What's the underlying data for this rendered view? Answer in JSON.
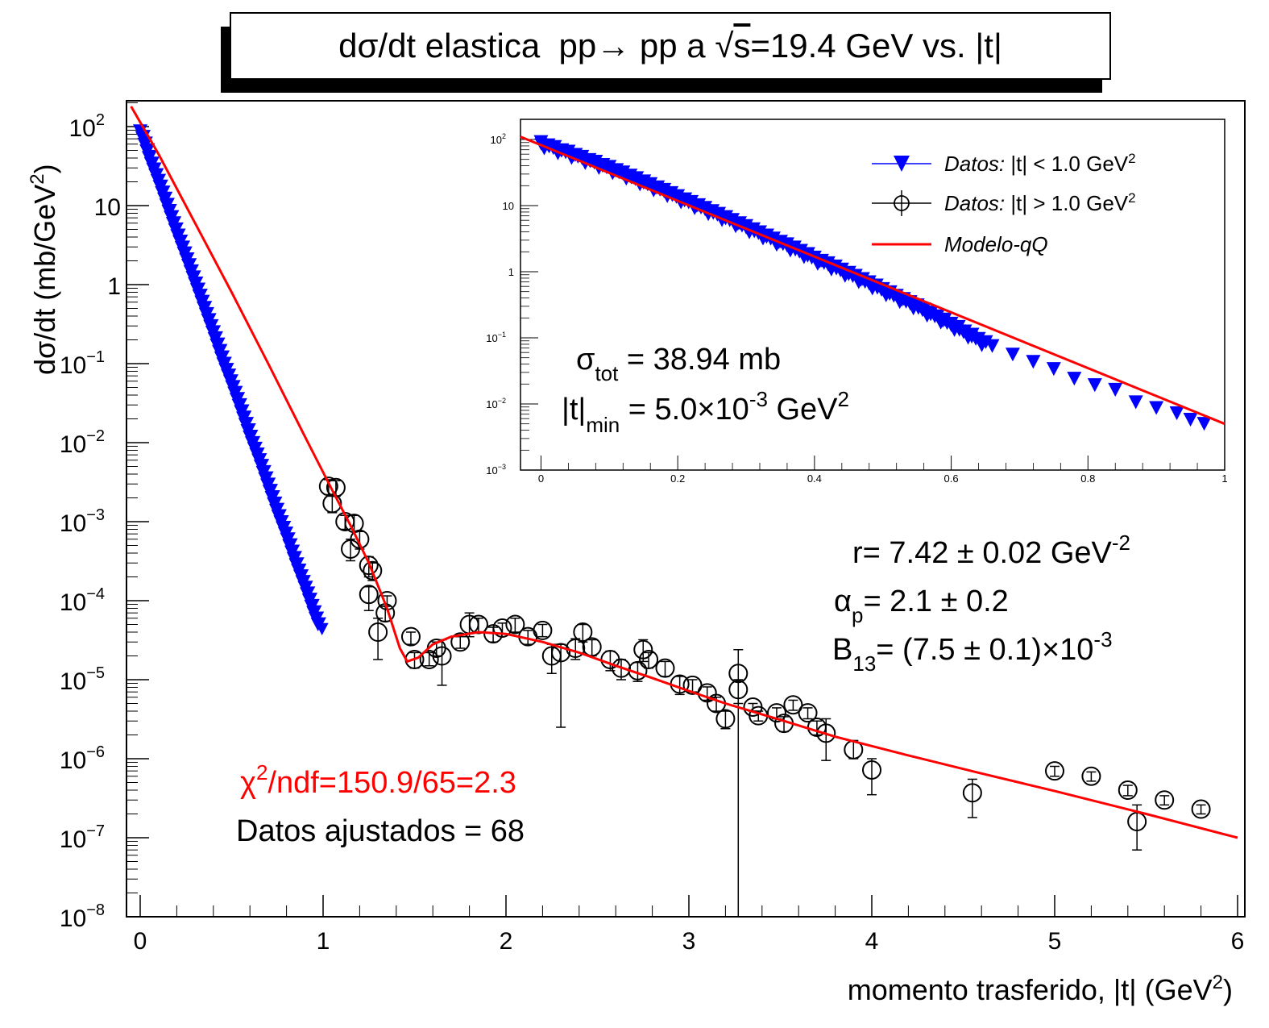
{
  "title": {
    "prefix": "dσ/dt elastica  pp→ pp a ",
    "sqrt": "√",
    "s": "s",
    "suffix": "=19.4 GeV vs. |t|"
  },
  "axes": {
    "ylabel_main": "dσ/dt (mb/GeV",
    "ylabel_exp": "2",
    "ylabel_close": ")",
    "xlabel_main": "momento trasferido, |t| (GeV",
    "xlabel_exp": "2",
    "xlabel_close": ")"
  },
  "annotations": {
    "chi2_sym": "χ",
    "chi2_exp": "2",
    "chi2_rest": "/ndf=150.9/65=2.3",
    "datos_ajustados": "Datos ajustados = 68",
    "r_text": "r= 7.42 ± 0.02 GeV",
    "r_exp": "-2",
    "alpha_sym": "α",
    "alpha_sub": "p",
    "alpha_rest": "= 2.1 ± 0.2",
    "b_sym": "B",
    "b_sub": "13",
    "b_rest": "= (7.5 ± 0.1)×10",
    "b_exp": "-3",
    "sigma_sym": "σ",
    "sigma_sub": "tot",
    "sigma_rest": " = 38.94 mb",
    "tmin_sym": "|t|",
    "tmin_sub": "min",
    "tmin_rest": " = 5.0×10",
    "tmin_exp": "-3",
    "tmin_unit": " GeV",
    "tmin_unit_exp": "2"
  },
  "legend": {
    "entries": [
      {
        "italic": "Datos:",
        "text": " |t| < 1.0 GeV",
        "exp": "2",
        "marker": "triangle-down",
        "color": "#0000ff"
      },
      {
        "italic": "Datos:",
        "text": " |t| > 1.0 GeV",
        "exp": "2",
        "marker": "open-circle",
        "color": "#000000"
      },
      {
        "italic": "Modelo-qQ",
        "text": "",
        "exp": "",
        "marker": "line",
        "color": "#ff0000"
      }
    ]
  },
  "colors": {
    "model": "#ff0000",
    "low_t": "#0000ff",
    "high_t": "#000000",
    "chi2_text": "#ff0000"
  },
  "chart_data": [
    {
      "type": "scatter",
      "xlim": [
        0,
        6
      ],
      "ylim": [
        1e-08,
        200
      ],
      "yscale": "log",
      "xticks": [
        "0",
        "1",
        "2",
        "3",
        "4",
        "5",
        "6"
      ],
      "yticks": [
        {
          "base": "10",
          "exp": "2"
        },
        {
          "base": "10",
          "exp": ""
        },
        {
          "base": "1",
          "exp": ""
        },
        {
          "base": "10",
          "exp": "−1"
        },
        {
          "base": "10",
          "exp": "−2"
        },
        {
          "base": "10",
          "exp": "−3"
        },
        {
          "base": "10",
          "exp": "−4"
        },
        {
          "base": "10",
          "exp": "−5"
        },
        {
          "base": "10",
          "exp": "−6"
        },
        {
          "base": "10",
          "exp": "−7"
        },
        {
          "base": "10",
          "exp": "−8"
        }
      ],
      "yticks_values": [
        100,
        10,
        1,
        0.1,
        0.01,
        0.001,
        0.0001,
        1e-05,
        1e-06,
        1e-07,
        1e-08
      ],
      "series": [
        {
          "marker": "open-circle",
          "points": [
            {
              "x": 1.03,
              "y": 0.0028,
              "lo": 0.0022,
              "hi": 0.0034
            },
            {
              "x": 1.07,
              "y": 0.0027,
              "lo": 0.0021,
              "hi": 0.0033
            },
            {
              "x": 1.05,
              "y": 0.0017,
              "lo": 0.0013,
              "hi": 0.0021
            },
            {
              "x": 1.12,
              "y": 0.001,
              "lo": 0.0008,
              "hi": 0.0012
            },
            {
              "x": 1.17,
              "y": 0.00095,
              "lo": 0.00075,
              "hi": 0.0012
            },
            {
              "x": 1.15,
              "y": 0.00045,
              "lo": 0.00032,
              "hi": 0.0006
            },
            {
              "x": 1.2,
              "y": 0.0006,
              "lo": 0.00045,
              "hi": 0.00075
            },
            {
              "x": 1.25,
              "y": 0.00028,
              "lo": 0.0002,
              "hi": 0.00036
            },
            {
              "x": 1.27,
              "y": 0.00024,
              "lo": 0.00018,
              "hi": 0.0003
            },
            {
              "x": 1.25,
              "y": 0.00012,
              "lo": 7.5e-05,
              "hi": 0.00015
            },
            {
              "x": 1.35,
              "y": 0.0001,
              "lo": 8.5e-05,
              "hi": 0.000115
            },
            {
              "x": 1.34,
              "y": 7e-05,
              "lo": 5.5e-05,
              "hi": 8.5e-05
            },
            {
              "x": 1.3,
              "y": 4e-05,
              "lo": 1.8e-05,
              "hi": 6e-05
            },
            {
              "x": 1.48,
              "y": 3.5e-05,
              "lo": 2.8e-05,
              "hi": 4e-05
            },
            {
              "x": 1.5,
              "y": 1.8e-05,
              "lo": 1.4e-05,
              "hi": 2.2e-05
            },
            {
              "x": 1.58,
              "y": 1.8e-05,
              "lo": 1.5e-05,
              "hi": 2.2e-05
            },
            {
              "x": 1.65,
              "y": 2e-05,
              "lo": 8.5e-06,
              "hi": 3.2e-05
            },
            {
              "x": 1.62,
              "y": 2.5e-05,
              "lo": 2e-05,
              "hi": 3e-05
            },
            {
              "x": 1.75,
              "y": 3e-05,
              "lo": 2.5e-05,
              "hi": 3.5e-05
            },
            {
              "x": 1.8,
              "y": 5e-05,
              "lo": 3.5e-05,
              "hi": 7e-05
            },
            {
              "x": 1.85,
              "y": 5e-05,
              "lo": 4e-05,
              "hi": 6e-05
            },
            {
              "x": 1.93,
              "y": 3.8e-05,
              "lo": 3e-05,
              "hi": 4.6e-05
            },
            {
              "x": 1.98,
              "y": 4.5e-05,
              "lo": 3.8e-05,
              "hi": 5.2e-05
            },
            {
              "x": 2.05,
              "y": 5e-05,
              "lo": 4e-05,
              "hi": 6e-05
            },
            {
              "x": 2.12,
              "y": 3.5e-05,
              "lo": 2.8e-05,
              "hi": 4.2e-05
            },
            {
              "x": 2.2,
              "y": 4.2e-05,
              "lo": 3.5e-05,
              "hi": 5e-05
            },
            {
              "x": 2.25,
              "y": 2e-05,
              "lo": 1.2e-05,
              "hi": 2.8e-05
            },
            {
              "x": 2.3,
              "y": 2.2e-05,
              "lo": 2.5e-06,
              "hi": 2.8e-05
            },
            {
              "x": 2.38,
              "y": 2.5e-05,
              "lo": 1.8e-05,
              "hi": 3.3e-05
            },
            {
              "x": 2.42,
              "y": 4e-05,
              "lo": 3e-05,
              "hi": 5e-05
            },
            {
              "x": 2.47,
              "y": 2.6e-05,
              "lo": 2e-05,
              "hi": 3.2e-05
            },
            {
              "x": 2.57,
              "y": 1.8e-05,
              "lo": 1.3e-05,
              "hi": 2.3e-05
            },
            {
              "x": 2.63,
              "y": 1.4e-05,
              "lo": 1e-05,
              "hi": 1.8e-05
            },
            {
              "x": 2.72,
              "y": 1.3e-05,
              "lo": 9.5e-06,
              "hi": 1.65e-05
            },
            {
              "x": 2.75,
              "y": 2.4e-05,
              "lo": 1.7e-05,
              "hi": 3.2e-05
            },
            {
              "x": 2.78,
              "y": 1.8e-05,
              "lo": 1.4e-05,
              "hi": 2.2e-05
            },
            {
              "x": 2.87,
              "y": 1.4e-05,
              "lo": 1.1e-05,
              "hi": 1.7e-05
            },
            {
              "x": 2.95,
              "y": 8.8e-06,
              "lo": 6.5e-06,
              "hi": 1.1e-05
            },
            {
              "x": 3.02,
              "y": 8.5e-06,
              "lo": 7e-06,
              "hi": 1e-05
            },
            {
              "x": 3.1,
              "y": 6.8e-06,
              "lo": 5.5e-06,
              "hi": 8.1e-06
            },
            {
              "x": 3.15,
              "y": 5e-06,
              "lo": 4e-06,
              "hi": 6e-06
            },
            {
              "x": 3.2,
              "y": 3.2e-06,
              "lo": 2.4e-06,
              "hi": 4e-06
            },
            {
              "x": 3.27,
              "y": 7.5e-06,
              "lo": 1e-08,
              "hi": 1e-05
            },
            {
              "x": 3.27,
              "y": 1.2e-05,
              "lo": 5e-06,
              "hi": 2.4e-05
            },
            {
              "x": 3.35,
              "y": 4.5e-06,
              "lo": 4e-06,
              "hi": 5e-06
            },
            {
              "x": 3.38,
              "y": 3.5e-06,
              "lo": 3e-06,
              "hi": 4e-06
            },
            {
              "x": 3.48,
              "y": 3.8e-06,
              "lo": 3.2e-06,
              "hi": 4.4e-06
            },
            {
              "x": 3.52,
              "y": 2.8e-06,
              "lo": 2.2e-06,
              "hi": 3.4e-06
            },
            {
              "x": 3.57,
              "y": 4.8e-06,
              "lo": 4.1e-06,
              "hi": 5.5e-06
            },
            {
              "x": 3.65,
              "y": 3.8e-06,
              "lo": 3.2e-06,
              "hi": 4.4e-06
            },
            {
              "x": 3.7,
              "y": 2.5e-06,
              "lo": 2e-06,
              "hi": 3e-06
            },
            {
              "x": 3.75,
              "y": 2.1e-06,
              "lo": 9.5e-07,
              "hi": 3.2e-06
            },
            {
              "x": 3.9,
              "y": 1.3e-06,
              "lo": 1e-06,
              "hi": 1.7e-06
            },
            {
              "x": 4.0,
              "y": 7.2e-07,
              "lo": 3.5e-07,
              "hi": 1e-06
            },
            {
              "x": 4.55,
              "y": 3.7e-07,
              "lo": 1.8e-07,
              "hi": 5.5e-07
            },
            {
              "x": 5.0,
              "y": 7e-07,
              "lo": 6e-07,
              "hi": 8e-07
            },
            {
              "x": 5.2,
              "y": 6e-07,
              "lo": 5.2e-07,
              "hi": 6.8e-07
            },
            {
              "x": 5.4,
              "y": 4e-07,
              "lo": 3.4e-07,
              "hi": 4.6e-07
            },
            {
              "x": 5.45,
              "y": 1.6e-07,
              "lo": 7e-08,
              "hi": 2.6e-07
            },
            {
              "x": 5.6,
              "y": 3e-07,
              "lo": 2.6e-07,
              "hi": 3.4e-07
            },
            {
              "x": 5.8,
              "y": 2.3e-07,
              "lo": 2e-07,
              "hi": 2.6e-07
            }
          ]
        },
        {
          "marker": "triangle-down",
          "band": [
            [
              0.0,
              90
            ],
            [
              0.05,
              40
            ],
            [
              0.1,
              20
            ],
            [
              0.15,
              9.5
            ],
            [
              0.2,
              4.5
            ],
            [
              0.25,
              2.2
            ],
            [
              0.3,
              1.05
            ],
            [
              0.35,
              0.5
            ],
            [
              0.4,
              0.24
            ],
            [
              0.45,
              0.11
            ],
            [
              0.5,
              0.055
            ],
            [
              0.55,
              0.026
            ],
            [
              0.6,
              0.012
            ],
            [
              0.65,
              0.006
            ],
            [
              0.7,
              0.0028
            ],
            [
              0.75,
              0.0013
            ],
            [
              0.8,
              0.00065
            ],
            [
              0.85,
              0.0003
            ],
            [
              0.9,
              0.00015
            ],
            [
              0.95,
              7e-05
            ],
            [
              1.0,
              3.5e-05
            ]
          ]
        },
        {
          "marker": "line",
          "name": "Modelo-qQ",
          "points": [
            [
              -0.05,
              180
            ],
            [
              0.1,
              45
            ],
            [
              0.3,
              6
            ],
            [
              0.5,
              0.8
            ],
            [
              0.7,
              0.1
            ],
            [
              0.9,
              0.012
            ],
            [
              1.05,
              0.0025
            ],
            [
              1.15,
              0.0009
            ],
            [
              1.25,
              0.0003
            ],
            [
              1.35,
              8e-05
            ],
            [
              1.42,
              2.5e-05
            ],
            [
              1.46,
              1.7e-05
            ],
            [
              1.52,
              1.9e-05
            ],
            [
              1.6,
              2.8e-05
            ],
            [
              1.7,
              3.5e-05
            ],
            [
              1.85,
              4e-05
            ],
            [
              2.0,
              3.8e-05
            ],
            [
              2.2,
              3e-05
            ],
            [
              2.4,
              2.2e-05
            ],
            [
              2.6,
              1.5e-05
            ],
            [
              2.8,
              1.05e-05
            ],
            [
              3.0,
              7.2e-06
            ],
            [
              3.2,
              5e-06
            ],
            [
              3.5,
              3.1e-06
            ],
            [
              3.8,
              1.9e-06
            ],
            [
              4.2,
              1.1e-06
            ],
            [
              4.6,
              6.5e-07
            ],
            [
              5.0,
              3.9e-07
            ],
            [
              5.5,
              2e-07
            ],
            [
              6.0,
              1e-07
            ]
          ]
        }
      ]
    },
    {
      "type": "scatter",
      "xlim": [
        -0.03,
        1.0
      ],
      "ylim": [
        0.001,
        150
      ],
      "yscale": "log",
      "xticks": [
        "0",
        "0.2",
        "0.4",
        "0.6",
        "0.8",
        "1"
      ],
      "yticks": [
        {
          "base": "10",
          "exp": "2"
        },
        {
          "base": "10",
          "exp": ""
        },
        {
          "base": "1",
          "exp": ""
        },
        {
          "base": "10",
          "exp": "−1"
        },
        {
          "base": "10",
          "exp": "−2"
        },
        {
          "base": "10",
          "exp": "−3"
        }
      ],
      "yticks_values": [
        100,
        10,
        1,
        0.1,
        0.01,
        0.001
      ],
      "series": [
        {
          "marker": "triangle-down",
          "points": [
            [
              0.0,
              95
            ],
            [
              0.02,
              80
            ],
            [
              0.04,
              68
            ],
            [
              0.06,
              57
            ],
            [
              0.08,
              48
            ],
            [
              0.1,
              40
            ],
            [
              0.12,
              33
            ],
            [
              0.14,
              27
            ],
            [
              0.16,
              22
            ],
            [
              0.18,
              18
            ],
            [
              0.2,
              14.5
            ],
            [
              0.22,
              11.8
            ],
            [
              0.24,
              9.6
            ],
            [
              0.26,
              7.8
            ],
            [
              0.28,
              6.3
            ],
            [
              0.3,
              5.1
            ],
            [
              0.32,
              4.1
            ],
            [
              0.34,
              3.3
            ],
            [
              0.36,
              2.7
            ],
            [
              0.38,
              2.15
            ],
            [
              0.4,
              1.7
            ],
            [
              0.42,
              1.4
            ],
            [
              0.44,
              1.12
            ],
            [
              0.46,
              0.9
            ],
            [
              0.48,
              0.72
            ],
            [
              0.5,
              0.57
            ],
            [
              0.52,
              0.45
            ],
            [
              0.54,
              0.36
            ],
            [
              0.56,
              0.28
            ],
            [
              0.58,
              0.22
            ],
            [
              0.6,
              0.17
            ],
            [
              0.62,
              0.13
            ],
            [
              0.64,
              0.1
            ],
            [
              0.66,
              0.078
            ],
            [
              0.69,
              0.058
            ],
            [
              0.72,
              0.045
            ],
            [
              0.75,
              0.035
            ],
            [
              0.78,
              0.025
            ],
            [
              0.81,
              0.02
            ],
            [
              0.84,
              0.017
            ],
            [
              0.87,
              0.011
            ],
            [
              0.9,
              0.009
            ],
            [
              0.93,
              0.0075
            ],
            [
              0.95,
              0.006
            ],
            [
              0.97,
              0.0052
            ]
          ]
        },
        {
          "marker": "line",
          "name": "Modelo-qQ",
          "points": [
            [
              -0.03,
              110
            ],
            [
              1.0,
              0.005
            ]
          ]
        }
      ]
    }
  ]
}
